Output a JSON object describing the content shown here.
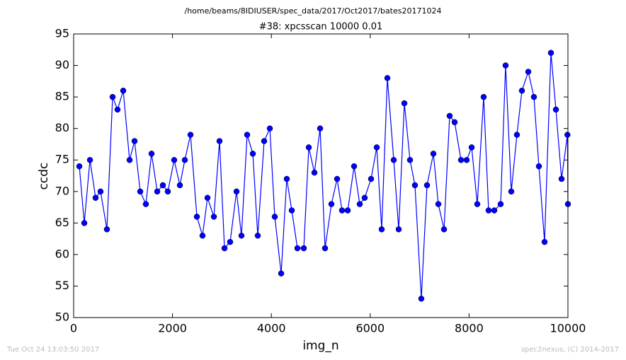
{
  "chart_data": {
    "type": "line",
    "suptitle": "/home/beams/8IDIUSER/spec_data/2017/Oct2017/bates20171024",
    "title": "#38: xpcsscan 10000 0.01",
    "x_label": "img_n",
    "y_label": "ccdc",
    "footer_left": "Tue Oct 24 13:03:50 2017",
    "footer_right": "spec2nexus, (C) 2014-2017",
    "x": [
      115,
      215,
      330,
      444,
      544,
      673,
      788,
      888,
      1003,
      1132,
      1232,
      1347,
      1461,
      1576,
      1691,
      1805,
      1905,
      2034,
      2149,
      2249,
      2364,
      2493,
      2607,
      2708,
      2837,
      2951,
      3052,
      3166,
      3295,
      3395,
      3510,
      3625,
      3725,
      3854,
      3969,
      4069,
      4198,
      4312,
      4413,
      4527,
      4656,
      4757,
      4871,
      4986,
      5086,
      5215,
      5330,
      5430,
      5545,
      5674,
      5788,
      5888,
      6017,
      6132,
      6232,
      6347,
      6476,
      6576,
      6691,
      6805,
      6905,
      7034,
      7149,
      7278,
      7378,
      7493,
      7607,
      7708,
      7837,
      7951,
      8052,
      8166,
      8295,
      8395,
      8510,
      8639,
      8739,
      8854,
      8968,
      9069,
      9198,
      9312,
      9413,
      9527,
      9656,
      9757,
      9871,
      9990,
      10000
    ],
    "series": [
      {
        "name": "ccdc",
        "color": "#0000ff",
        "values": [
          74,
          65,
          75,
          69,
          70,
          64,
          85,
          83,
          86,
          75,
          78,
          70,
          68,
          76,
          70,
          71,
          70,
          75,
          71,
          75,
          79,
          66,
          63,
          69,
          66,
          78,
          61,
          62,
          70,
          63,
          79,
          76,
          63,
          78,
          80,
          66,
          57,
          72,
          67,
          61,
          61,
          77,
          73,
          80,
          61,
          68,
          72,
          67,
          67,
          74,
          68,
          69,
          72,
          77,
          64,
          88,
          75,
          64,
          84,
          75,
          71,
          53,
          71,
          76,
          68,
          64,
          82,
          81,
          75,
          75,
          77,
          68,
          85,
          67,
          67,
          68,
          90,
          70,
          79,
          86,
          89,
          85,
          74,
          62,
          92,
          83,
          72,
          79,
          68
        ]
      }
    ],
    "xlim": [
      0,
      10000
    ],
    "xticks": [
      0,
      2000,
      4000,
      6000,
      8000,
      10000
    ],
    "ylim": [
      50,
      95
    ],
    "yticks": [
      50,
      55,
      60,
      65,
      70,
      75,
      80,
      85,
      90,
      95
    ]
  }
}
